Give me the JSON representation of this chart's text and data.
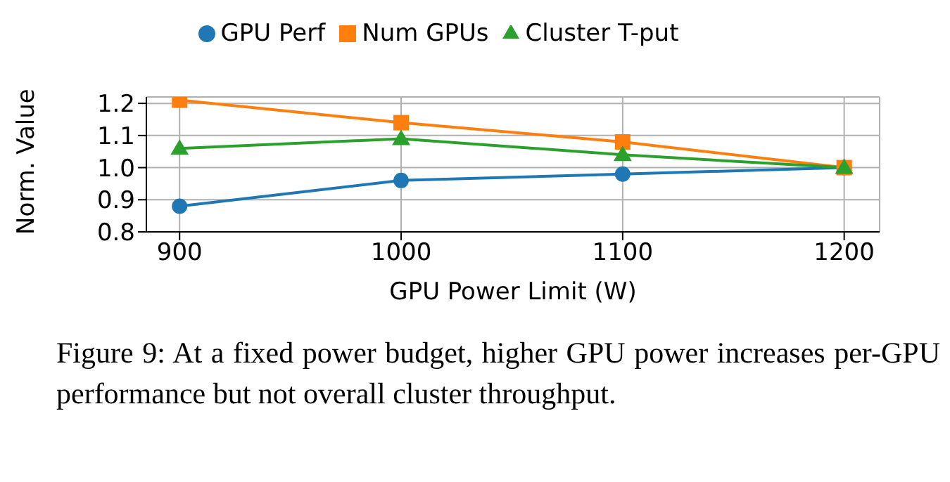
{
  "chart_data": {
    "type": "line",
    "xlabel": "GPU Power Limit (W)",
    "ylabel": "Norm. Value",
    "x": [
      900,
      1000,
      1100,
      1200
    ],
    "series": [
      {
        "name": "GPU Perf",
        "color": "#1f77b4",
        "marker": "circle",
        "values": [
          0.88,
          0.96,
          0.98,
          1.0
        ]
      },
      {
        "name": "Num GPUs",
        "color": "#ff7f0e",
        "marker": "square",
        "values": [
          1.21,
          1.14,
          1.08,
          1.0
        ]
      },
      {
        "name": "Cluster T-put",
        "color": "#2ca02c",
        "marker": "triangle",
        "values": [
          1.06,
          1.09,
          1.04,
          1.0
        ]
      }
    ],
    "xlim": [
      885,
      1216
    ],
    "xticks": [
      900,
      1000,
      1100,
      1200
    ],
    "ylim": [
      0.8,
      1.22
    ],
    "yticks": [
      {
        "value": 0.8,
        "label": "0.8"
      },
      {
        "value": 0.9,
        "label": "0.9"
      },
      {
        "value": 1.0,
        "label": "1.0"
      },
      {
        "value": 1.1,
        "label": "1.1"
      },
      {
        "value": 1.2,
        "label": "1.2"
      }
    ],
    "grid": true,
    "legend": "top",
    "line_style": "solid",
    "annotations": [
      "Figure 9: At a fixed power budget, higher GPU power increases per-GPU performance but not overall cluster throughput."
    ]
  }
}
